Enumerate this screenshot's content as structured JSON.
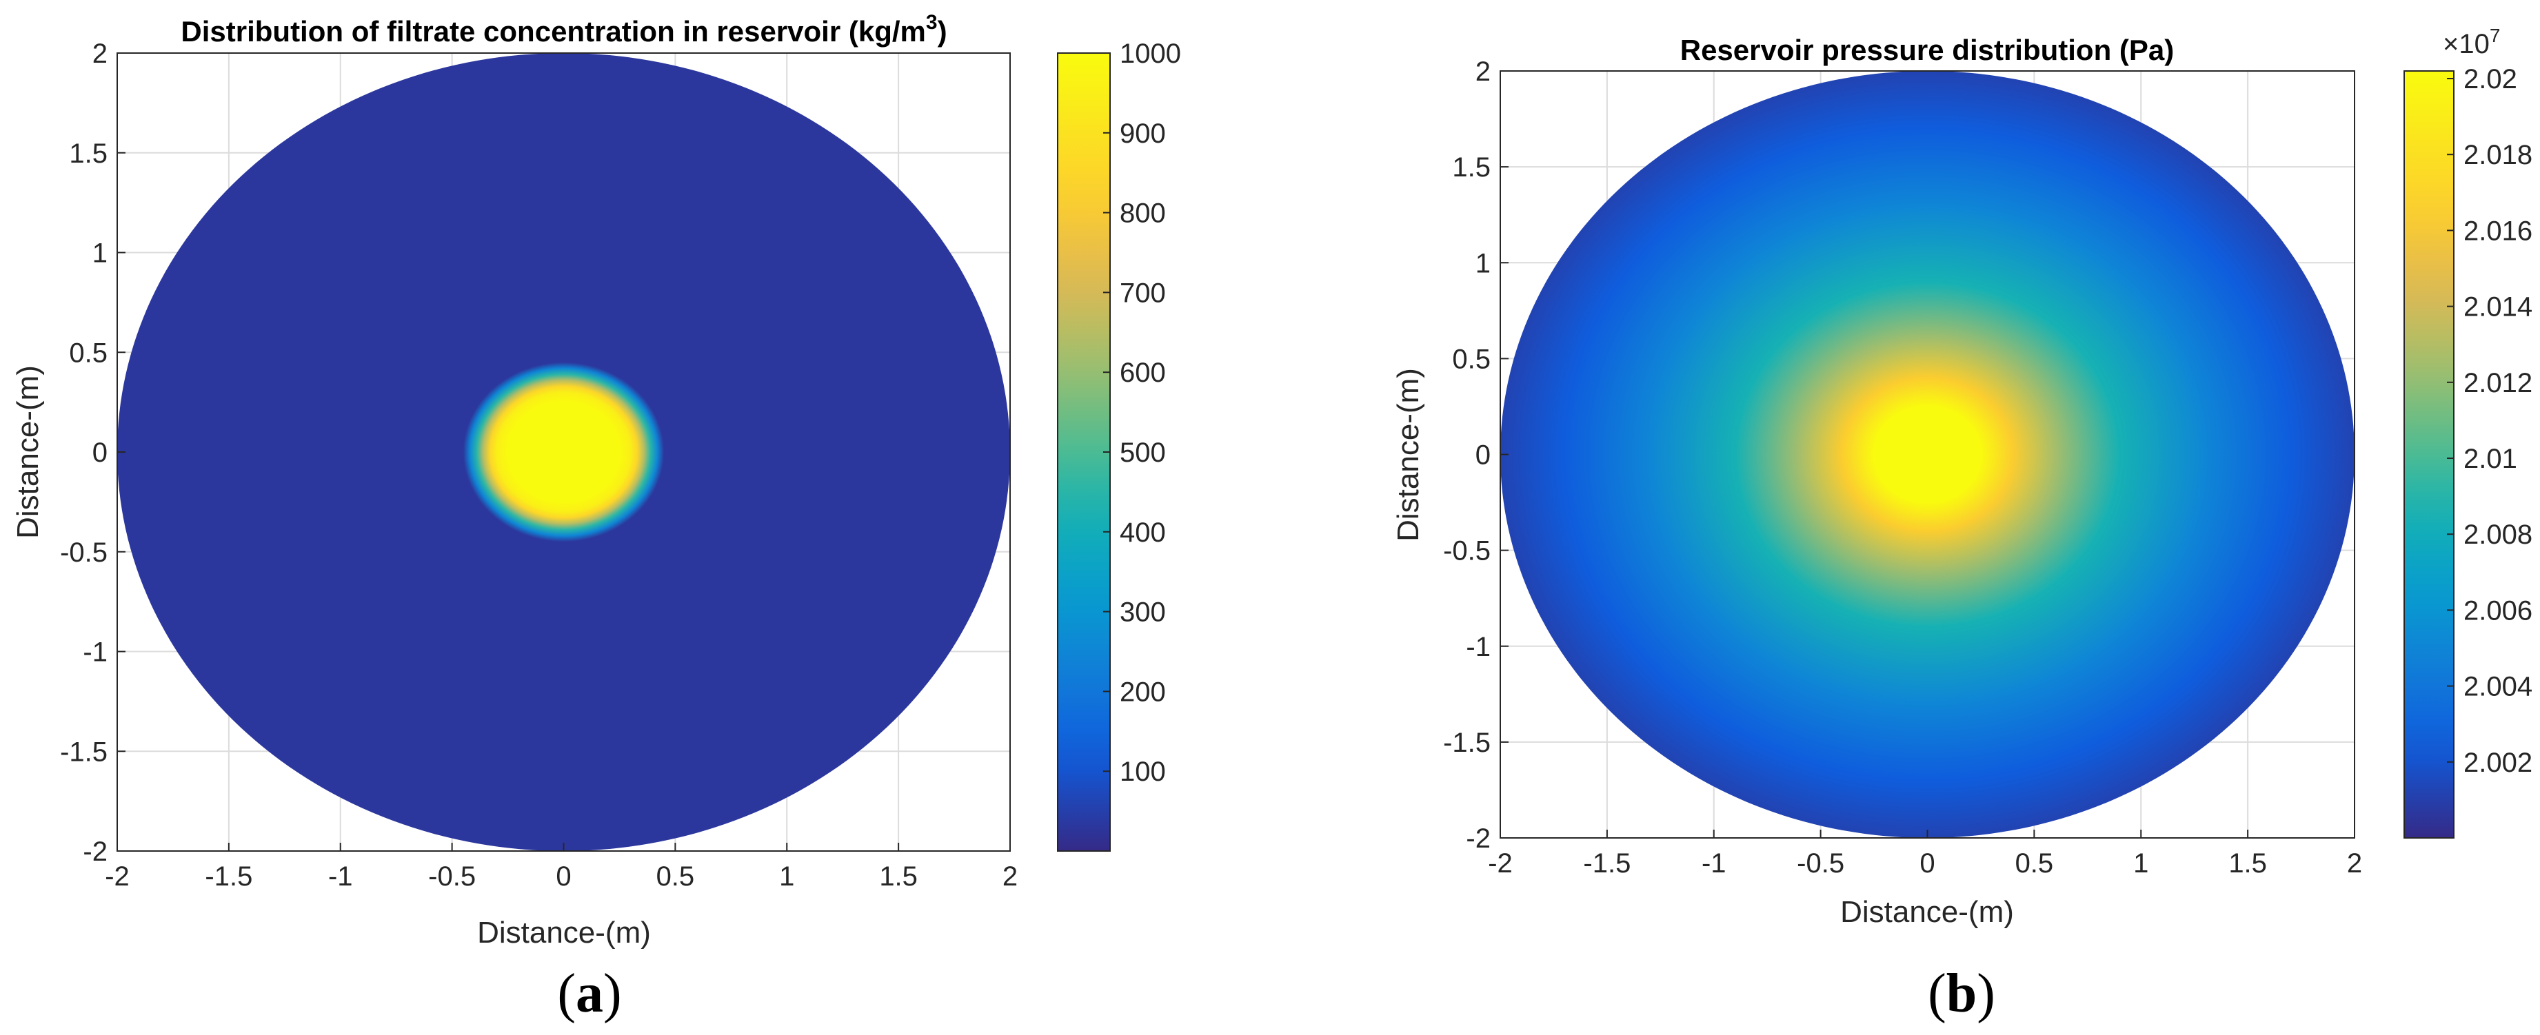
{
  "panels": [
    {
      "label_left": "(",
      "label_letter": "a",
      "label_right": ")",
      "title": "Distribution of filtrate concentration in reservoir (kg/m",
      "title_sup": "3",
      "title_end": ")",
      "xlabel": "Distance-(m)",
      "ylabel": "Distance-(m)",
      "colorbar_multiplier": "",
      "colorbar_multiplier_exp": ""
    },
    {
      "label_left": "(",
      "label_letter": "b",
      "label_right": ")",
      "title": "Reservoir pressure distribution (Pa)",
      "title_sup": "",
      "title_end": "",
      "xlabel": "Distance-(m)",
      "ylabel": "Distance-(m)",
      "colorbar_multiplier": "×10",
      "colorbar_multiplier_exp": "7"
    }
  ],
  "chart_data": [
    {
      "type": "heatmap",
      "title": "Distribution of filtrate concentration in reservoir (kg/m3)",
      "xlabel": "Distance-(m)",
      "ylabel": "Distance-(m)",
      "xlim": [
        -2,
        2
      ],
      "ylim": [
        -2,
        2
      ],
      "xticks": [
        "-2",
        "-1.5",
        "-1",
        "-0.5",
        "0",
        "0.5",
        "1",
        "1.5",
        "2"
      ],
      "yticks": [
        "-2",
        "-1.5",
        "-1",
        "-0.5",
        "0",
        "0.5",
        "1",
        "1.5",
        "2"
      ],
      "grid": true,
      "domain": "disk of radius 2 m centered at origin",
      "colormap": "parula",
      "colorbar": {
        "range": [
          0,
          1000
        ],
        "ticks": [
          "100",
          "200",
          "300",
          "400",
          "500",
          "600",
          "700",
          "800",
          "900",
          "1000"
        ]
      },
      "radial_profile": {
        "r": [
          0,
          0.25,
          0.3,
          0.33,
          0.36,
          0.39,
          0.42,
          0.45,
          2.0
        ],
        "value": [
          1000,
          1000,
          950,
          850,
          650,
          450,
          250,
          30,
          30
        ]
      }
    },
    {
      "type": "heatmap",
      "title": "Reservoir pressure distribution (Pa)",
      "xlabel": "Distance-(m)",
      "ylabel": "Distance-(m)",
      "xlim": [
        -2,
        2
      ],
      "ylim": [
        -2,
        2
      ],
      "xticks": [
        "-2",
        "-1.5",
        "-1",
        "-0.5",
        "0",
        "0.5",
        "1",
        "1.5",
        "2"
      ],
      "yticks": [
        "-2",
        "-1.5",
        "-1",
        "-0.5",
        "0",
        "0.5",
        "1",
        "1.5",
        "2"
      ],
      "grid": true,
      "domain": "disk of radius 2 m centered at origin",
      "colormap": "parula",
      "colorbar": {
        "range": [
          2.0,
          2.0202
        ],
        "multiplier": "×10^7",
        "ticks": [
          "2.002",
          "2.004",
          "2.006",
          "2.008",
          "2.01",
          "2.012",
          "2.014",
          "2.016",
          "2.018",
          "2.02"
        ]
      },
      "radial_profile": {
        "r": [
          0,
          0.25,
          0.4,
          0.6,
          0.9,
          1.3,
          1.7,
          2.0
        ],
        "value": [
          2.0202,
          2.0202,
          2.0165,
          2.0125,
          2.0085,
          2.005,
          2.0025,
          2.0012
        ]
      }
    }
  ]
}
